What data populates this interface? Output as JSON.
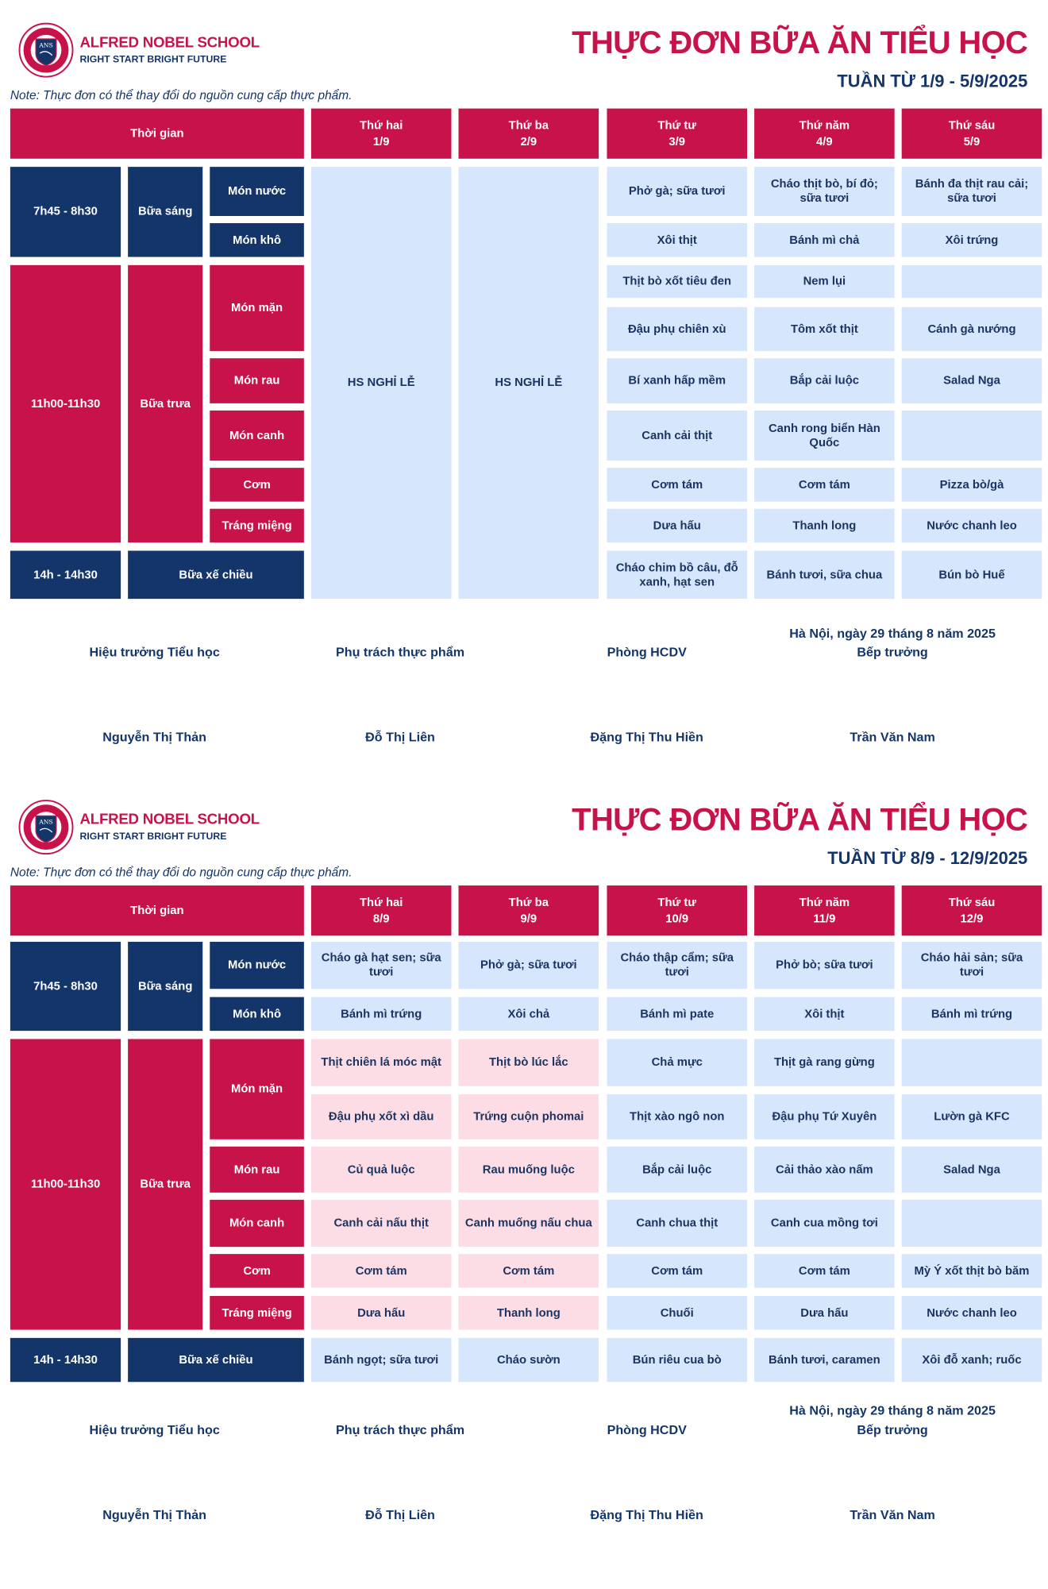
{
  "school": {
    "name": "ALFRED NOBEL SCHOOL",
    "slogan": "RIGHT START  BRIGHT FUTURE",
    "logo_text": "ANS"
  },
  "left_labels": {
    "time_header": "Thời gian",
    "time_slots": [
      "7h45 - 8h30",
      "11h00-11h30",
      "14h - 14h30"
    ],
    "meals": [
      "Bữa sáng",
      "Bữa trưa",
      "Bữa xế chiều"
    ],
    "dishes": [
      "Món nước",
      "Món khô",
      "Món mặn",
      "Món rau",
      "Món canh",
      "Cơm",
      "Tráng miệng"
    ]
  },
  "signatures": {
    "place_date": "Hà Nội, ngày 29 tháng 8 năm 2025",
    "roles": [
      "Hiệu trưởng Tiểu học",
      "Phụ trách thực phẩm",
      "Phòng HCDV",
      "Bếp trưởng"
    ],
    "names": [
      "Nguyễn Thị Thản",
      "Đỗ Thị Liên",
      "Đặng Thị Thu Hiền",
      "Trần Văn Nam"
    ]
  },
  "colors": {
    "red": "#c8134a",
    "navy": "#14356a",
    "light_blue": "#d6e6fc",
    "pink": "#fddde5"
  },
  "weeks": [
    {
      "title": "THỰC ĐƠN BỮA ĂN TIỂU HỌC",
      "week_label": "TUẦN TỪ 1/9 - 5/9/2025",
      "note": "Note: Thực đơn có thể thay đổi do nguồn cung cấp thực phẩm.",
      "days": [
        {
          "name": "Thứ hai",
          "date": "1/9",
          "holiday": "HS NGHỈ LỄ"
        },
        {
          "name": "Thứ ba",
          "date": "2/9",
          "holiday": "HS NGHỈ LỄ"
        },
        {
          "name": "Thứ tư",
          "date": "3/9",
          "items": [
            "Phở gà; sữa tươi",
            "Xôi thịt",
            "Thịt bò xốt tiêu đen",
            "Đậu phụ chiên xù",
            "Bí xanh hấp mềm",
            "Canh cải thịt",
            "Cơm tám",
            "Dưa hấu",
            "Cháo chim bồ câu, đỗ xanh, hạt sen"
          ]
        },
        {
          "name": "Thứ năm",
          "date": "4/9",
          "items": [
            "Cháo thịt bò, bí đỏ; sữa tươi",
            "Bánh mì chả",
            "Nem lụi",
            "Tôm xốt thịt",
            "Bắp cải luộc",
            "Canh rong biển Hàn Quốc",
            "Cơm tám",
            "Thanh long",
            "Bánh tươi, sữa chua"
          ]
        },
        {
          "name": "Thứ sáu",
          "date": "5/9",
          "items": [
            "Bánh đa thịt rau cải; sữa tươi",
            "Xôi trứng",
            "",
            "Cánh gà nướng",
            "Salad Nga",
            "",
            "Pizza bò/gà",
            "Nước chanh leo",
            "Bún bò Huế"
          ]
        }
      ]
    },
    {
      "title": "THỰC ĐƠN BỮA ĂN TIỂU HỌC",
      "week_label": "TUẦN TỪ 8/9 - 12/9/2025",
      "note": "Note: Thực đơn có thể thay đổi do nguồn cung cấp thực phẩm.",
      "days": [
        {
          "name": "Thứ hai",
          "date": "8/9",
          "highlight": true,
          "items": [
            "Cháo gà hạt sen; sữa tươi",
            "Bánh mì trứng",
            "Thịt chiên lá móc mật",
            "Đậu phụ xốt xì dầu",
            "Củ quả luộc",
            "Canh cải nấu thịt",
            "Cơm tám",
            "Dưa hấu",
            "Bánh ngọt; sữa tươi"
          ]
        },
        {
          "name": "Thứ ba",
          "date": "9/9",
          "highlight": true,
          "items": [
            "Phở gà; sữa tươi",
            "Xôi chả",
            "Thịt bò lúc lắc",
            "Trứng cuộn phomai",
            "Rau muống luộc",
            "Canh muống nấu chua",
            "Cơm tám",
            "Thanh long",
            "Cháo sườn"
          ]
        },
        {
          "name": "Thứ tư",
          "date": "10/9",
          "items": [
            "Cháo thập cẩm; sữa tươi",
            "Bánh mì pate",
            "Chả mực",
            "Thịt xào ngô non",
            "Bắp cải luộc",
            "Canh chua thịt",
            "Cơm tám",
            "Chuối",
            "Bún riêu cua bò"
          ]
        },
        {
          "name": "Thứ năm",
          "date": "11/9",
          "items": [
            "Phở bò; sữa tươi",
            "Xôi thịt",
            "Thịt gà rang gừng",
            "Đậu phụ Tứ Xuyên",
            "Cải thảo xào nấm",
            "Canh cua mồng tơi",
            "Cơm tám",
            "Dưa hấu",
            "Bánh tươi, caramen"
          ]
        },
        {
          "name": "Thứ sáu",
          "date": "12/9",
          "items": [
            "Cháo hải sản; sữa tươi",
            "Bánh mì trứng",
            "",
            "Lườn gà KFC",
            "Salad Nga",
            "",
            "Mỳ Ý xốt thịt bò băm",
            "Nước chanh leo",
            "Xôi đỗ xanh; ruốc"
          ]
        }
      ]
    }
  ]
}
